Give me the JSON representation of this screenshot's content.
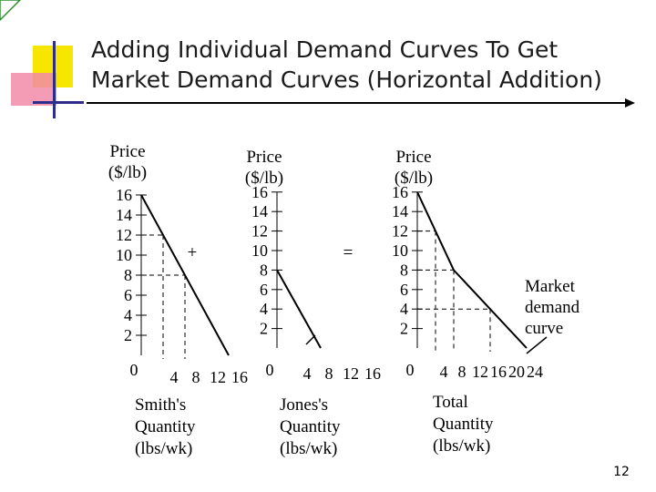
{
  "slide": {
    "title_line1": "Adding Individual Demand Curves To Get",
    "title_line2": "Market Demand Curves (Horizontal Addition)",
    "page_number": "12",
    "plus_sign": "+",
    "equals_sign": "=",
    "colors": {
      "deco_yellow": "#f7e600",
      "deco_pink": "#f28aa8",
      "deco_blue": "#2e2e8a",
      "line": "#000000"
    }
  },
  "chart_data": [
    {
      "type": "line",
      "panel": "smith",
      "ylabel_line1": "Price",
      "ylabel_line2": "($/lb)",
      "xlabel_lines": [
        "Smith's",
        "Quantity",
        "(lbs/wk)"
      ],
      "y_ticks": [
        2,
        4,
        6,
        8,
        10,
        12,
        14,
        16
      ],
      "x_ticks": [
        0,
        4,
        8,
        12,
        16
      ],
      "xlim": [
        0,
        16
      ],
      "ylim": [
        0,
        16
      ],
      "series": [
        {
          "x": [
            0,
            16
          ],
          "y": [
            16,
            0
          ]
        }
      ],
      "guides": [
        {
          "x": 4,
          "y": 12
        },
        {
          "x": 8,
          "y": 8
        }
      ]
    },
    {
      "type": "line",
      "panel": "jones",
      "ylabel_line1": "Price",
      "ylabel_line2": "($/lb)",
      "xlabel_lines": [
        "Jones's",
        "Quantity",
        "(lbs/wk)"
      ],
      "y_ticks": [
        2,
        4,
        6,
        8,
        10,
        12,
        14,
        16
      ],
      "x_ticks": [
        0,
        4,
        8,
        12,
        16
      ],
      "xlim": [
        0,
        16
      ],
      "ylim": [
        0,
        16
      ],
      "series": [
        {
          "x": [
            0,
            8
          ],
          "y": [
            8,
            0
          ]
        }
      ],
      "guides": []
    },
    {
      "type": "line",
      "panel": "market",
      "ylabel_line1": "Price",
      "ylabel_line2": "($/lb)",
      "xlabel_lines": [
        "Total",
        "Quantity",
        "(lbs/wk)"
      ],
      "y_ticks": [
        2,
        4,
        6,
        8,
        10,
        12,
        14,
        16
      ],
      "x_ticks": [
        0,
        4,
        8,
        12,
        16,
        20,
        24
      ],
      "xlim": [
        0,
        24
      ],
      "ylim": [
        0,
        16
      ],
      "series": [
        {
          "x": [
            0,
            8,
            24
          ],
          "y": [
            16,
            8,
            0
          ]
        }
      ],
      "guides": [
        {
          "x": 4,
          "y": 12
        },
        {
          "x": 8,
          "y": 8
        },
        {
          "x": 16,
          "y": 4
        }
      ],
      "annotation_lines": [
        "Market",
        "demand",
        "curve"
      ]
    }
  ]
}
